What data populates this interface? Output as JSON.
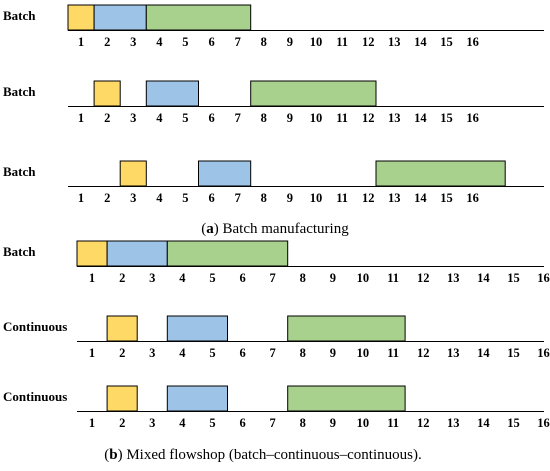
{
  "colors": {
    "stage1": "#FFD966",
    "stage2": "#9DC3E6",
    "stage3": "#A9D18E",
    "stroke": "#000000",
    "axis": "#000000"
  },
  "panels": [
    {
      "caption_letter": "a",
      "caption_text": " Batch manufacturing",
      "rows": [
        {
          "label": "Batch",
          "ticks": [
            "1",
            "2",
            "3",
            "4",
            "5",
            "6",
            "7",
            "8",
            "9",
            "10",
            "11",
            "12",
            "13",
            "14",
            "15",
            "16"
          ],
          "blocks": [
            {
              "stage": "stage1",
              "start": 0,
              "end": 1
            },
            {
              "stage": "stage2",
              "start": 1,
              "end": 3
            },
            {
              "stage": "stage3",
              "start": 3,
              "end": 7
            }
          ]
        },
        {
          "label": "Batch",
          "ticks": [
            "1",
            "2",
            "3",
            "4",
            "5",
            "6",
            "7",
            "8",
            "9",
            "10",
            "11",
            "12",
            "13",
            "14",
            "15",
            "16"
          ],
          "blocks": [
            {
              "stage": "stage1",
              "start": 1,
              "end": 2
            },
            {
              "stage": "stage2",
              "start": 3,
              "end": 5
            },
            {
              "stage": "stage3",
              "start": 7,
              "end": 11.8
            }
          ]
        },
        {
          "label": "Batch",
          "ticks": [
            "1",
            "2",
            "3",
            "4",
            "5",
            "6",
            "7",
            "8",
            "9",
            "10",
            "11",
            "12",
            "13",
            "14",
            "15",
            "16"
          ],
          "blocks": [
            {
              "stage": "stage1",
              "start": 2,
              "end": 3
            },
            {
              "stage": "stage2",
              "start": 5,
              "end": 7
            },
            {
              "stage": "stage3",
              "start": 11.8,
              "end": 16.75
            }
          ]
        }
      ]
    },
    {
      "caption_letter": "b",
      "caption_text": " Mixed flowshop (batch–continuous–continuous).",
      "rows": [
        {
          "label": "Batch",
          "ticks": [
            "1",
            "2",
            "3",
            "4",
            "5",
            "6",
            "7",
            "8",
            "9",
            "10",
            "11",
            "12",
            "13",
            "14",
            "15",
            "16"
          ],
          "blocks": [
            {
              "stage": "stage1",
              "start": 0,
              "end": 1
            },
            {
              "stage": "stage2",
              "start": 1,
              "end": 3
            },
            {
              "stage": "stage3",
              "start": 3,
              "end": 7
            }
          ]
        },
        {
          "label": "Continuous",
          "ticks": [
            "1",
            "2",
            "3",
            "4",
            "5",
            "6",
            "7",
            "8",
            "9",
            "10",
            "11",
            "12",
            "13",
            "14",
            "15",
            "16"
          ],
          "blocks": [
            {
              "stage": "stage1",
              "start": 1,
              "end": 2
            },
            {
              "stage": "stage2",
              "start": 3,
              "end": 5
            },
            {
              "stage": "stage3",
              "start": 7,
              "end": 10.9
            }
          ]
        },
        {
          "label": "Continuous",
          "ticks": [
            "1",
            "2",
            "3",
            "4",
            "5",
            "6",
            "7",
            "8",
            "9",
            "10",
            "11",
            "12",
            "13",
            "14",
            "15",
            "16"
          ],
          "blocks": [
            {
              "stage": "stage1",
              "start": 1,
              "end": 2
            },
            {
              "stage": "stage2",
              "start": 3,
              "end": 5
            },
            {
              "stage": "stage3",
              "start": 7,
              "end": 10.9
            }
          ]
        }
      ]
    }
  ]
}
